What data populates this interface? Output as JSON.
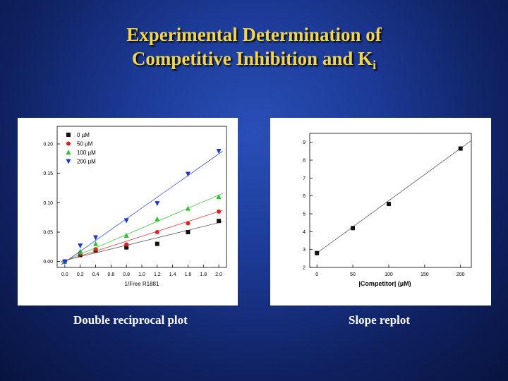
{
  "slide": {
    "title_line1": "Experimental Determination of",
    "title_line2_main": "Competitive Inhibition and K",
    "title_line2_sub": "i",
    "caption_left": "Double reciprocal plot",
    "caption_right": "Slope replot",
    "background_color": "#1c3a96",
    "title_color": "#f2d64a"
  },
  "chart_data": [
    {
      "type": "scatter",
      "xlabel": "1/Free R1881",
      "ylabel": "",
      "xlim": [
        -0.1,
        2.1
      ],
      "ylim": [
        -0.01,
        0.23
      ],
      "x_ticks": [
        "0.0",
        "0.2",
        "0.4",
        "0.6",
        "0.8",
        "1.0",
        "1.2",
        "1.4",
        "1.6",
        "1.8",
        "2.0"
      ],
      "y_ticks": [
        "0.00",
        "0.05",
        "0.10",
        "0.15",
        "0.20"
      ],
      "legend_position": "top-left",
      "series": [
        {
          "name": "0 µM",
          "color": "#111111",
          "marker": "square",
          "x": [
            0.0,
            0.2,
            0.4,
            0.8,
            1.2,
            1.6,
            2.0
          ],
          "y": [
            0.0,
            0.011,
            0.019,
            0.024,
            0.03,
            0.05,
            0.069
          ],
          "fit": [
            0.002,
            0.032
          ]
        },
        {
          "name": "50 µM",
          "color": "#e0201e",
          "marker": "circle",
          "x": [
            0.0,
            0.2,
            0.4,
            0.8,
            1.2,
            1.6,
            2.0
          ],
          "y": [
            0.0,
            0.014,
            0.021,
            0.029,
            0.05,
            0.065,
            0.085
          ],
          "fit": [
            0.001,
            0.042
          ]
        },
        {
          "name": "100 µM",
          "color": "#2fc02f",
          "marker": "triangle-up",
          "x": [
            0.0,
            0.2,
            0.4,
            0.8,
            1.2,
            1.6,
            2.0
          ],
          "y": [
            0.0,
            0.017,
            0.03,
            0.044,
            0.072,
            0.09,
            0.11
          ],
          "fit": [
            0.001,
            0.056
          ]
        },
        {
          "name": "200 µM",
          "color": "#1a36d6",
          "marker": "triangle-down",
          "x": [
            0.0,
            0.2,
            0.4,
            0.8,
            1.2,
            1.6,
            2.0
          ],
          "y": [
            0.0,
            0.027,
            0.041,
            0.07,
            0.099,
            0.149,
            0.188
          ],
          "fit": [
            -0.001,
            0.092
          ]
        }
      ]
    },
    {
      "type": "scatter",
      "xlabel": "|Competitor| (µM)",
      "ylabel": "",
      "xlim": [
        -10,
        215
      ],
      "ylim": [
        2,
        9.5
      ],
      "x_ticks": [
        "0",
        "50",
        "100",
        "150",
        "200"
      ],
      "y_ticks": [
        "2",
        "3",
        "4",
        "5",
        "6",
        "7",
        "8",
        "9"
      ],
      "series": [
        {
          "name": "",
          "color": "#111111",
          "marker": "square",
          "x": [
            0,
            50,
            100,
            200
          ],
          "y": [
            2.8,
            4.2,
            5.55,
            8.65
          ],
          "fit": [
            2.8,
            0.0293
          ]
        }
      ]
    }
  ]
}
